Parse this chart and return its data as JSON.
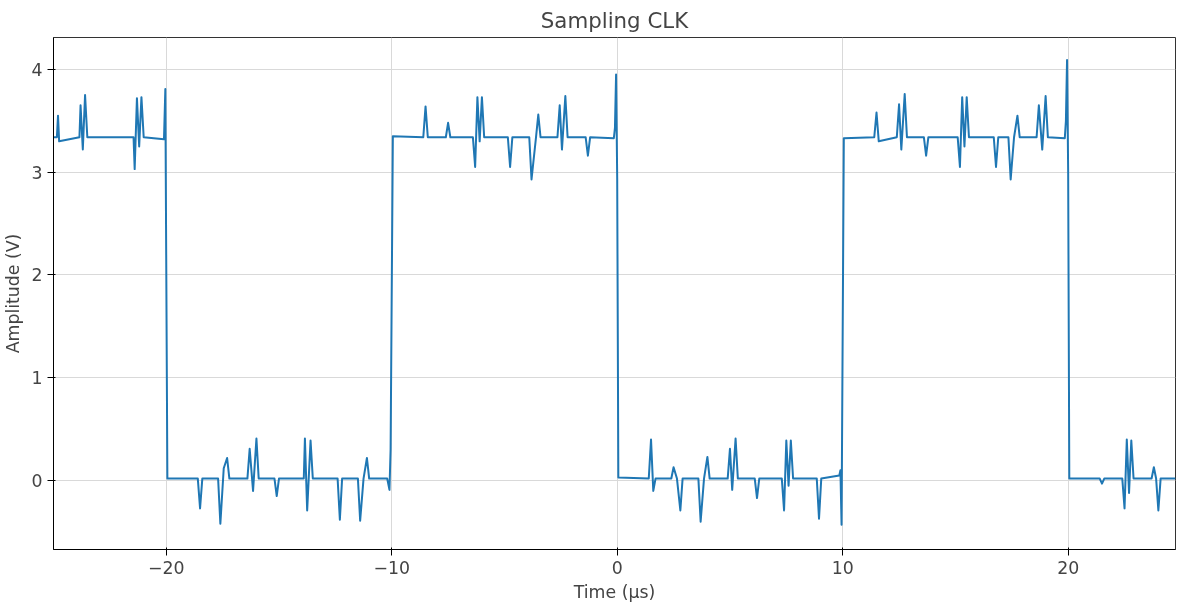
{
  "chart_data": {
    "type": "line",
    "title": "Sampling CLK",
    "xlabel": "Time (µs)",
    "ylabel": "Amplitude (V)",
    "xlim": [
      -25,
      24.76
    ],
    "ylim": [
      -0.67,
      4.31
    ],
    "xticks": [
      {
        "value": -20,
        "label": "−20"
      },
      {
        "value": -10,
        "label": "−10"
      },
      0,
      10,
      20
    ],
    "yticks": [
      0,
      1,
      2,
      3,
      4
    ],
    "grid": true,
    "marker": "none",
    "line_style": "solid",
    "series": [
      {
        "color": "#1f77b4",
        "x": [
          -25,
          -24.85,
          -24.8,
          -24.75,
          -23.85,
          -23.8,
          -23.7,
          -23.6,
          -23.5,
          -21.45,
          -21.4,
          -21.3,
          -21.2,
          -21.1,
          -21.0,
          -20.1,
          -20.04,
          -19.95,
          -18.6,
          -18.5,
          -18.4,
          -17.7,
          -17.6,
          -17.45,
          -17.3,
          -17.2,
          -16.4,
          -16.3,
          -16.15,
          -16.0,
          -15.9,
          -15.2,
          -15.1,
          -15.0,
          -13.9,
          -13.85,
          -13.75,
          -13.6,
          -13.5,
          -12.4,
          -12.3,
          -12.2,
          -11.5,
          -11.4,
          -11.25,
          -11.1,
          -11.0,
          -10.2,
          -10.1,
          -10.05,
          -9.95,
          -8.6,
          -8.5,
          -8.4,
          -7.6,
          -7.5,
          -7.4,
          -6.4,
          -6.3,
          -6.2,
          -6.1,
          -6.0,
          -5.9,
          -4.85,
          -4.75,
          -4.65,
          -3.9,
          -3.8,
          -3.6,
          -3.5,
          -3.4,
          -2.65,
          -2.55,
          -2.45,
          -2.3,
          -2.2,
          -1.4,
          -1.3,
          -1.2,
          -0.15,
          -0.1,
          -0.05,
          0.0,
          0.05,
          1.4,
          1.5,
          1.6,
          1.7,
          2.4,
          2.5,
          2.65,
          2.8,
          2.9,
          3.6,
          3.7,
          3.85,
          4.0,
          4.1,
          4.9,
          5.0,
          5.1,
          5.25,
          5.35,
          6.1,
          6.2,
          6.3,
          7.3,
          7.4,
          7.5,
          7.6,
          7.7,
          7.8,
          8.85,
          8.95,
          9.05,
          9.85,
          9.9,
          9.95,
          10.05,
          11.4,
          11.5,
          11.6,
          12.4,
          12.5,
          12.6,
          12.75,
          12.85,
          13.6,
          13.7,
          13.8,
          15.1,
          15.2,
          15.3,
          15.4,
          15.5,
          15.6,
          16.7,
          16.8,
          16.9,
          17.35,
          17.45,
          17.6,
          17.75,
          17.85,
          18.6,
          18.7,
          18.85,
          19.0,
          19.1,
          19.85,
          19.9,
          19.95,
          20.0,
          20.05,
          21.4,
          21.5,
          21.6,
          22.4,
          22.5,
          22.6,
          22.7,
          22.8,
          22.9,
          23.7,
          23.8,
          23.9,
          24.0,
          24.1,
          24.76
        ],
        "values": [
          3.34,
          3.34,
          3.55,
          3.3,
          3.34,
          3.65,
          3.22,
          3.75,
          3.34,
          3.34,
          3.03,
          3.72,
          3.25,
          3.73,
          3.34,
          3.32,
          3.81,
          0.02,
          0.02,
          -0.27,
          0.02,
          0.02,
          -0.42,
          0.12,
          0.22,
          0.02,
          0.02,
          0.31,
          -0.1,
          0.41,
          0.02,
          0.02,
          -0.15,
          0.02,
          0.02,
          0.41,
          -0.29,
          0.39,
          0.02,
          0.02,
          -0.38,
          0.02,
          0.02,
          -0.39,
          0.02,
          0.22,
          0.02,
          0.02,
          -0.09,
          0.3,
          3.35,
          3.34,
          3.64,
          3.34,
          3.34,
          3.48,
          3.34,
          3.34,
          3.05,
          3.73,
          3.3,
          3.73,
          3.34,
          3.34,
          3.05,
          3.34,
          3.34,
          2.93,
          3.34,
          3.56,
          3.34,
          3.34,
          3.65,
          3.22,
          3.74,
          3.34,
          3.34,
          3.16,
          3.34,
          3.33,
          3.43,
          3.95,
          2.93,
          0.03,
          0.02,
          0.4,
          -0.1,
          0.02,
          0.02,
          0.13,
          0.02,
          -0.29,
          0.02,
          0.02,
          -0.4,
          0.02,
          0.23,
          0.02,
          0.02,
          0.31,
          -0.09,
          0.41,
          0.02,
          0.02,
          -0.17,
          0.02,
          0.02,
          -0.29,
          0.39,
          -0.05,
          0.39,
          0.02,
          0.02,
          -0.37,
          0.02,
          0.05,
          0.1,
          -0.43,
          3.33,
          3.34,
          3.58,
          3.3,
          3.34,
          3.66,
          3.22,
          3.76,
          3.34,
          3.34,
          3.16,
          3.34,
          3.34,
          3.05,
          3.73,
          3.25,
          3.73,
          3.34,
          3.34,
          3.05,
          3.34,
          3.34,
          2.93,
          3.34,
          3.55,
          3.34,
          3.34,
          3.65,
          3.22,
          3.74,
          3.34,
          3.33,
          3.5,
          4.09,
          2.99,
          0.02,
          0.02,
          -0.03,
          0.02,
          0.02,
          -0.27,
          0.4,
          -0.12,
          0.39,
          0.02,
          0.02,
          0.13,
          0.02,
          -0.29,
          0.02,
          0.02
        ]
      }
    ]
  }
}
